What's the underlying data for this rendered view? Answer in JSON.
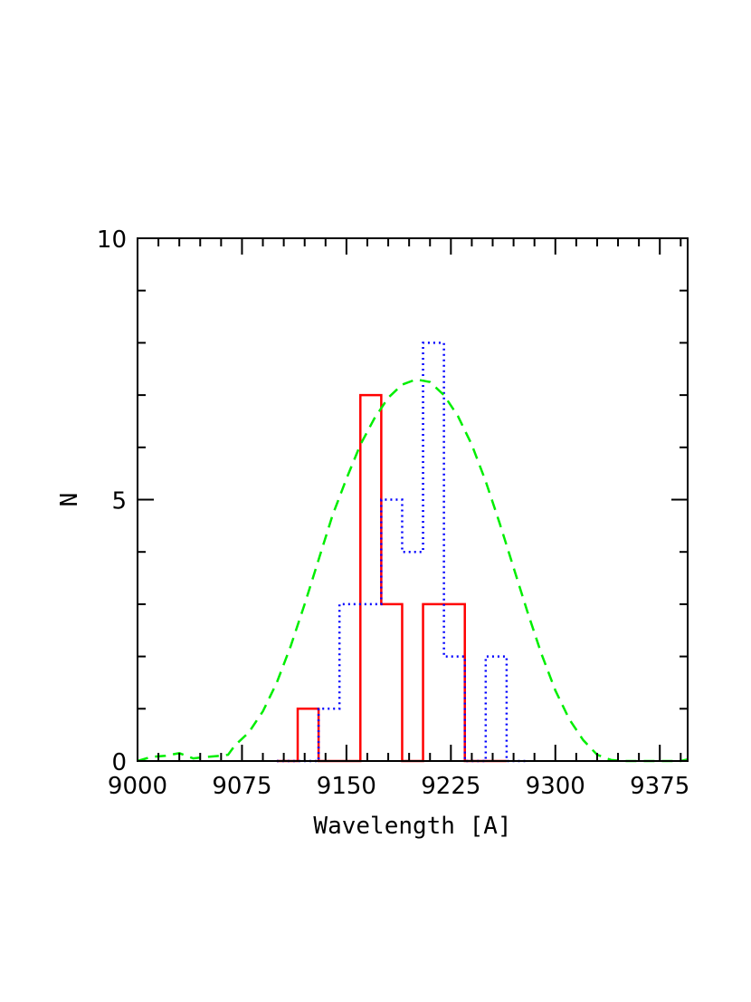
{
  "chart_data": {
    "type": "histogram",
    "xlabel": "Wavelength [A]",
    "ylabel": "N",
    "xlim": [
      9000,
      9395
    ],
    "ylim": [
      0,
      10
    ],
    "grid": false,
    "xticks": [
      {
        "value": 9000,
        "label": "9000"
      },
      {
        "value": 9075,
        "label": "9075"
      },
      {
        "value": 9150,
        "label": "9150"
      },
      {
        "value": 9225,
        "label": "9225"
      },
      {
        "value": 9300,
        "label": "9300"
      },
      {
        "value": 9375,
        "label": "9375"
      }
    ],
    "yticks": [
      {
        "value": 0,
        "label": "0"
      },
      {
        "value": 5,
        "label": "5"
      },
      {
        "value": 10,
        "label": "10"
      }
    ],
    "series": [
      {
        "kind": "step",
        "color": "#ff0000",
        "dash": "solid",
        "bins": [
          {
            "x0": 9100,
            "x1": 9115,
            "y": 0
          },
          {
            "x0": 9115,
            "x1": 9130,
            "y": 1
          },
          {
            "x0": 9130,
            "x1": 9145,
            "y": 0
          },
          {
            "x0": 9145,
            "x1": 9160,
            "y": 0
          },
          {
            "x0": 9160,
            "x1": 9175,
            "y": 7
          },
          {
            "x0": 9175,
            "x1": 9190,
            "y": 3
          },
          {
            "x0": 9190,
            "x1": 9205,
            "y": 0
          },
          {
            "x0": 9205,
            "x1": 9220,
            "y": 3
          },
          {
            "x0": 9220,
            "x1": 9235,
            "y": 3
          },
          {
            "x0": 9235,
            "x1": 9250,
            "y": 0
          },
          {
            "x0": 9250,
            "x1": 9265,
            "y": 0
          }
        ]
      },
      {
        "kind": "step",
        "color": "#0000ff",
        "dash": "dotted",
        "bins": [
          {
            "x0": 9100,
            "x1": 9115,
            "y": 0
          },
          {
            "x0": 9115,
            "x1": 9130,
            "y": 0
          },
          {
            "x0": 9130,
            "x1": 9145,
            "y": 1
          },
          {
            "x0": 9145,
            "x1": 9160,
            "y": 3
          },
          {
            "x0": 9160,
            "x1": 9175,
            "y": 3
          },
          {
            "x0": 9175,
            "x1": 9190,
            "y": 5
          },
          {
            "x0": 9190,
            "x1": 9205,
            "y": 4
          },
          {
            "x0": 9205,
            "x1": 9220,
            "y": 8
          },
          {
            "x0": 9220,
            "x1": 9235,
            "y": 2
          },
          {
            "x0": 9235,
            "x1": 9250,
            "y": 0
          },
          {
            "x0": 9250,
            "x1": 9265,
            "y": 2
          },
          {
            "x0": 9265,
            "x1": 9280,
            "y": 0
          }
        ]
      },
      {
        "kind": "line",
        "color": "#00ee00",
        "dash": "dashed",
        "x": [
          9000,
          9010,
          9020,
          9030,
          9040,
          9050,
          9060,
          9065,
          9070,
          9080,
          9090,
          9100,
          9110,
          9120,
          9130,
          9140,
          9150,
          9160,
          9170,
          9180,
          9190,
          9200,
          9210,
          9220,
          9230,
          9240,
          9250,
          9260,
          9270,
          9280,
          9290,
          9300,
          9310,
          9320,
          9330,
          9340,
          9350,
          9360,
          9370,
          9380,
          9390,
          9395
        ],
        "y": [
          0.0,
          0.08,
          0.1,
          0.15,
          0.05,
          0.08,
          0.1,
          0.12,
          0.3,
          0.55,
          0.95,
          1.5,
          2.2,
          3.0,
          3.85,
          4.7,
          5.4,
          6.05,
          6.55,
          6.95,
          7.2,
          7.3,
          7.25,
          7.0,
          6.6,
          6.05,
          5.35,
          4.55,
          3.7,
          2.85,
          2.05,
          1.35,
          0.8,
          0.4,
          0.12,
          0.02,
          0.0,
          0.0,
          0.0,
          0.0,
          0.0,
          0.03
        ]
      }
    ]
  }
}
